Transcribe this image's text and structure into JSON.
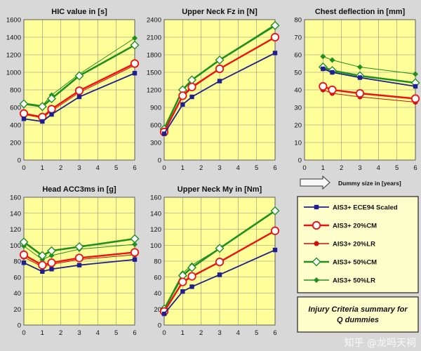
{
  "chart_data": [
    {
      "type": "line",
      "title": "HIC value in [s]",
      "x": [
        0,
        1,
        1.5,
        3,
        6
      ],
      "xticks": [
        0,
        1,
        2,
        3,
        4,
        5,
        6
      ],
      "xlim": [
        0,
        6
      ],
      "ylim": [
        0,
        1600
      ],
      "yticks": [
        0,
        200,
        400,
        600,
        800,
        1000,
        1200,
        1400,
        1600
      ],
      "grid": true,
      "series": [
        {
          "name": "AIS3+ ECE94 Scaled",
          "values": [
            470,
            440,
            520,
            720,
            990
          ]
        },
        {
          "name": "AIS3+ 20%CM",
          "values": [
            530,
            490,
            580,
            790,
            1100
          ]
        },
        {
          "name": "AIS3+ 20%LR",
          "values": [
            520,
            480,
            560,
            770,
            1080
          ]
        },
        {
          "name": "AIS3+ 50%CM",
          "values": [
            640,
            610,
            700,
            960,
            1310
          ]
        },
        {
          "name": "AIS3+ 50%LR",
          "values": [
            650,
            620,
            740,
            980,
            1390
          ]
        }
      ]
    },
    {
      "type": "line",
      "title": "Upper Neck Fz in [N]",
      "x": [
        0,
        1,
        1.5,
        3,
        6
      ],
      "xticks": [
        0,
        1,
        2,
        3,
        4,
        5,
        6
      ],
      "xlim": [
        0,
        6
      ],
      "ylim": [
        0,
        2400
      ],
      "yticks": [
        0,
        300,
        600,
        900,
        1200,
        1500,
        1800,
        2100,
        2400
      ],
      "grid": true,
      "series": [
        {
          "name": "AIS3+ ECE94 Scaled",
          "values": [
            450,
            950,
            1080,
            1350,
            1830
          ]
        },
        {
          "name": "AIS3+ 20%CM",
          "values": [
            480,
            1100,
            1250,
            1560,
            2100
          ]
        },
        {
          "name": "AIS3+ 20%LR",
          "values": [
            490,
            1080,
            1230,
            1560,
            2090
          ]
        },
        {
          "name": "AIS3+ 50%CM",
          "values": [
            530,
            1200,
            1370,
            1710,
            2300
          ]
        },
        {
          "name": "AIS3+ 50%LR",
          "values": [
            560,
            1200,
            1380,
            1710,
            2320
          ]
        }
      ]
    },
    {
      "type": "line",
      "title": "Chest deflection  in [mm]",
      "x": [
        1,
        1.5,
        3,
        6
      ],
      "xticks": [
        0,
        1,
        2,
        3,
        4,
        5,
        6
      ],
      "xlim": [
        0,
        6
      ],
      "ylim": [
        0,
        80
      ],
      "yticks": [
        0,
        10,
        20,
        30,
        40,
        50,
        60,
        70,
        80
      ],
      "grid": true,
      "series": [
        {
          "name": "AIS3+ ECE94 Scaled",
          "values": [
            52,
            50,
            47,
            42
          ]
        },
        {
          "name": "AIS3+ 20%CM",
          "values": [
            42,
            40,
            38,
            35
          ]
        },
        {
          "name": "AIS3+ 20%LR",
          "values": [
            40,
            38,
            36,
            33
          ]
        },
        {
          "name": "AIS3+ 50%CM",
          "values": [
            53,
            51,
            48,
            44
          ]
        },
        {
          "name": "AIS3+ 50%LR",
          "values": [
            59,
            57,
            53,
            49
          ]
        }
      ]
    },
    {
      "type": "line",
      "title": "Head ACC3ms in [g]",
      "x": [
        0,
        1,
        1.5,
        3,
        6
      ],
      "xticks": [
        0,
        1,
        2,
        3,
        4,
        5,
        6
      ],
      "xlim": [
        0,
        6
      ],
      "ylim": [
        0,
        160
      ],
      "yticks": [
        0,
        20,
        40,
        60,
        80,
        100,
        120,
        140,
        160
      ],
      "grid": true,
      "series": [
        {
          "name": "AIS3+ ECE94 Scaled",
          "values": [
            78,
            67,
            70,
            75,
            82
          ]
        },
        {
          "name": "AIS3+ 20%CM",
          "values": [
            88,
            75,
            78,
            84,
            91
          ]
        },
        {
          "name": "AIS3+ 20%LR",
          "values": [
            85,
            73,
            76,
            82,
            88
          ]
        },
        {
          "name": "AIS3+ 50%CM",
          "values": [
            104,
            87,
            93,
            98,
            108
          ]
        },
        {
          "name": "AIS3+ 50%LR",
          "values": [
            99,
            82,
            87,
            95,
            101
          ]
        }
      ]
    },
    {
      "type": "line",
      "title": "Upper Neck My in [Nm]",
      "x": [
        0,
        1,
        1.5,
        3,
        6
      ],
      "xticks": [
        0,
        1,
        2,
        3,
        4,
        5,
        6
      ],
      "xlim": [
        0,
        6
      ],
      "ylim": [
        0,
        160
      ],
      "yticks": [
        0,
        20,
        40,
        60,
        80,
        100,
        120,
        140,
        160
      ],
      "grid": true,
      "series": [
        {
          "name": "AIS3+ ECE94 Scaled",
          "values": [
            14,
            42,
            48,
            63,
            94
          ]
        },
        {
          "name": "AIS3+ 20%CM",
          "values": [
            17,
            54,
            61,
            79,
            118
          ]
        },
        {
          "name": "AIS3+ 20%LR",
          "values": [
            16,
            53,
            60,
            79,
            118
          ]
        },
        {
          "name": "AIS3+ 50%CM",
          "values": [
            20,
            62,
            72,
            96,
            143
          ]
        },
        {
          "name": "AIS3+ 50%LR",
          "values": [
            21,
            65,
            75,
            96,
            144
          ]
        }
      ]
    }
  ],
  "series_style": [
    {
      "color": "#1f1f8f",
      "marker": "square",
      "width": 1.8
    },
    {
      "color": "#ee1111",
      "marker": "circle-open",
      "width": 2.4
    },
    {
      "color": "#cc1111",
      "marker": "circle",
      "width": 1.0
    },
    {
      "color": "#1f8f1f",
      "marker": "diamond-open",
      "width": 2.6
    },
    {
      "color": "#1f8f1f",
      "marker": "diamond",
      "width": 1.0
    }
  ],
  "legend_labels": [
    "AIS3+ ECE94 Scaled",
    "AIS3+ 20%CM",
    "AIS3+ 20%LR",
    "AIS3+ 50%CM",
    "AIS3+ 50%LR"
  ],
  "xaxis_note": "Dummy size in [years]",
  "summary_box": {
    "line1": "Injury Criteria summary for",
    "line2": "Q dummies"
  },
  "watermark": "知乎 @龙吗天祠",
  "colors": {
    "plot_bg": "#ffff99",
    "page_bg": "#d8d8d8",
    "grid": "#8c8c8c"
  }
}
